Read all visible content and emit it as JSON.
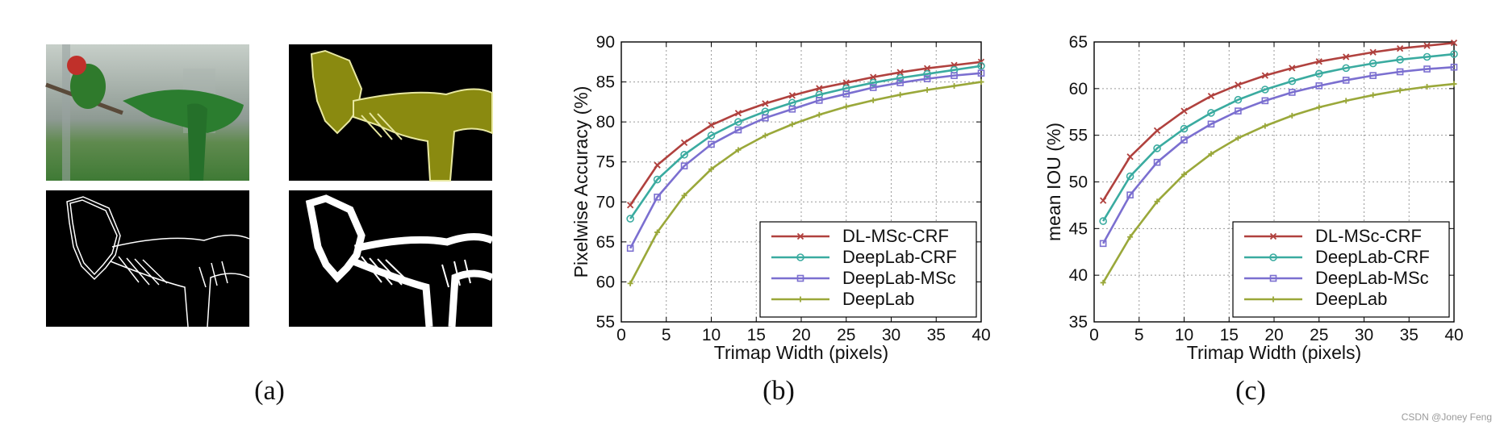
{
  "captions": {
    "a": "(a)",
    "b": "(b)",
    "c": "(c)"
  },
  "watermark": "CSDN @Joney Feng",
  "colors": {
    "dl_msc_crf": "#b0413e",
    "deeplab_crf": "#3aaba0",
    "deeplab_msc": "#7b6fd0",
    "deeplab": "#9aa83a",
    "bird_fill": "#8a8a10"
  },
  "panel_a_images": [
    {
      "label": "parrot-photo"
    },
    {
      "label": "segmentation-mask"
    },
    {
      "label": "thin-trimap-boundary"
    },
    {
      "label": "wide-trimap-band"
    }
  ],
  "chart_data": [
    {
      "type": "line",
      "xlabel": "Trimap Width (pixels)",
      "ylabel": "Pixelwise Accuracy (%)",
      "xlim": [
        0,
        40
      ],
      "ylim": [
        55,
        90
      ],
      "xticks": [
        0,
        5,
        10,
        15,
        20,
        25,
        30,
        35,
        40
      ],
      "yticks": [
        55,
        60,
        65,
        70,
        75,
        80,
        85,
        90
      ],
      "grid": true,
      "legend_position": "bottom-right",
      "x": [
        1,
        4,
        7,
        10,
        13,
        16,
        19,
        22,
        25,
        28,
        31,
        34,
        37,
        40
      ],
      "series": [
        {
          "name": "DL-MSc-CRF",
          "marker": "x",
          "color": "#b0413e",
          "values": [
            69.6,
            74.6,
            77.4,
            79.6,
            81.1,
            82.3,
            83.3,
            84.2,
            84.9,
            85.6,
            86.2,
            86.7,
            87.1,
            87.5
          ]
        },
        {
          "name": "DeepLab-CRF",
          "marker": "circle",
          "color": "#3aaba0",
          "values": [
            67.9,
            72.8,
            75.9,
            78.3,
            80.0,
            81.3,
            82.4,
            83.4,
            84.2,
            84.9,
            85.5,
            86.0,
            86.5,
            87.0
          ]
        },
        {
          "name": "DeepLab-MSc",
          "marker": "square",
          "color": "#7b6fd0",
          "values": [
            64.2,
            70.6,
            74.5,
            77.2,
            79.0,
            80.5,
            81.6,
            82.7,
            83.5,
            84.3,
            84.9,
            85.4,
            85.8,
            86.1
          ]
        },
        {
          "name": "DeepLab",
          "marker": "plus",
          "color": "#9aa83a",
          "values": [
            59.8,
            66.2,
            70.8,
            74.1,
            76.5,
            78.3,
            79.7,
            80.9,
            81.9,
            82.7,
            83.4,
            84.0,
            84.5,
            85.0
          ]
        }
      ]
    },
    {
      "type": "line",
      "xlabel": "Trimap Width (pixels)",
      "ylabel": "mean IOU (%)",
      "xlim": [
        0,
        40
      ],
      "ylim": [
        35,
        65
      ],
      "xticks": [
        0,
        5,
        10,
        15,
        20,
        25,
        30,
        35,
        40
      ],
      "yticks": [
        35,
        40,
        45,
        50,
        55,
        60,
        65
      ],
      "grid": true,
      "legend_position": "bottom-right",
      "x": [
        1,
        4,
        7,
        10,
        13,
        16,
        19,
        22,
        25,
        28,
        31,
        34,
        37,
        40
      ],
      "series": [
        {
          "name": "DL-MSc-CRF",
          "marker": "x",
          "color": "#b0413e",
          "values": [
            48.0,
            52.7,
            55.5,
            57.6,
            59.2,
            60.4,
            61.4,
            62.2,
            62.9,
            63.4,
            63.9,
            64.3,
            64.6,
            64.9
          ]
        },
        {
          "name": "DeepLab-CRF",
          "marker": "circle",
          "color": "#3aaba0",
          "values": [
            45.8,
            50.6,
            53.6,
            55.7,
            57.4,
            58.8,
            59.9,
            60.8,
            61.6,
            62.2,
            62.7,
            63.1,
            63.4,
            63.7
          ]
        },
        {
          "name": "DeepLab-MSc",
          "marker": "square",
          "color": "#7b6fd0",
          "values": [
            43.4,
            48.6,
            52.1,
            54.5,
            56.2,
            57.6,
            58.7,
            59.6,
            60.3,
            60.9,
            61.4,
            61.8,
            62.1,
            62.3
          ]
        },
        {
          "name": "DeepLab",
          "marker": "plus",
          "color": "#9aa83a",
          "values": [
            39.2,
            44.1,
            47.9,
            50.8,
            53.0,
            54.7,
            56.0,
            57.1,
            58.0,
            58.7,
            59.3,
            59.8,
            60.2,
            60.5
          ]
        }
      ]
    }
  ]
}
